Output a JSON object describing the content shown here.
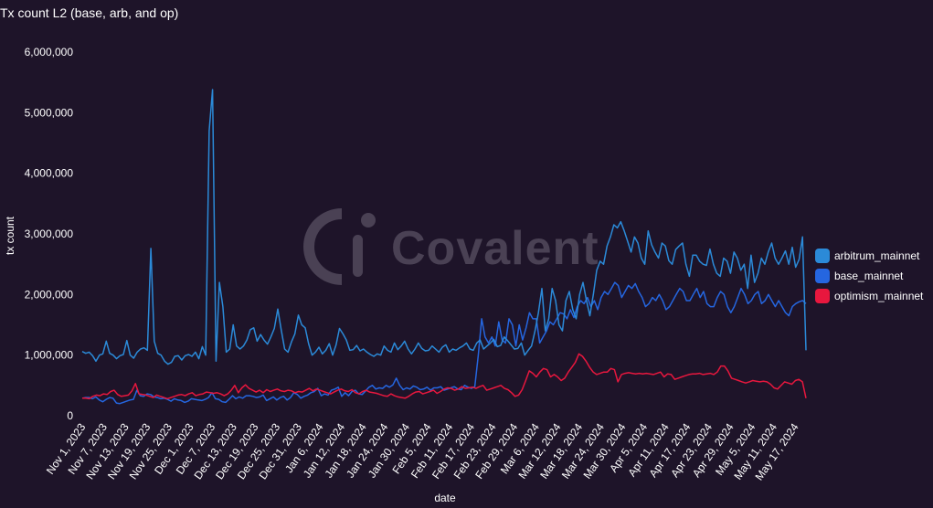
{
  "chart_data": {
    "type": "line",
    "title": "Tx count L2 (base, arb, and op)",
    "xlabel": "date",
    "ylabel": "tx count",
    "ylim": [
      0,
      6000000
    ],
    "yticks": [
      0,
      1000000,
      2000000,
      3000000,
      4000000,
      5000000,
      6000000
    ],
    "ytick_labels": [
      "0",
      "1,000,000",
      "2,000,000",
      "3,000,000",
      "4,000,000",
      "5,000,000",
      "6,000,000"
    ],
    "x_start": "2023-11-01",
    "x_end": "2024-05-20",
    "xtick_labels": [
      "Nov 1, 2023",
      "Nov 7, 2023",
      "Nov 13, 2023",
      "Nov 19, 2023",
      "Nov 25, 2023",
      "Dec 1, 2023",
      "Dec 7, 2023",
      "Dec 13, 2023",
      "Dec 19, 2023",
      "Dec 25, 2023",
      "Dec 31, 2023",
      "Jan 6, 2024",
      "Jan 12, 2024",
      "Jan 18, 2024",
      "Jan 24, 2024",
      "Jan 30, 2024",
      "Feb 5, 2024",
      "Feb 11, 2024",
      "Feb 17, 2024",
      "Feb 23, 2024",
      "Feb 29, 2024",
      "Mar 6, 2024",
      "Mar 12, 2024",
      "Mar 18, 2024",
      "Mar 24, 2024",
      "Mar 30, 2024",
      "Apr 5, 2024",
      "Apr 11, 2024",
      "Apr 17, 2024",
      "Apr 23, 2024",
      "Apr 29, 2024",
      "May 5, 2024",
      "May 11, 2024",
      "May 17, 2024"
    ],
    "grid": false,
    "legend_position": "right",
    "watermark": "Covalent",
    "series": [
      {
        "name": "arbitrum_mainnet",
        "color": "#2b8ad8",
        "values": [
          1060000,
          1030000,
          1050000,
          990000,
          900000,
          1000000,
          1020000,
          1230000,
          1030000,
          1000000,
          940000,
          990000,
          1010000,
          1240000,
          1000000,
          950000,
          1050000,
          1100000,
          1120000,
          1080000,
          2760000,
          1230000,
          1030000,
          1000000,
          900000,
          850000,
          880000,
          980000,
          990000,
          920000,
          990000,
          1010000,
          980000,
          1050000,
          940000,
          1140000,
          1000000,
          4700000,
          5380000,
          900000,
          2200000,
          1800000,
          1050000,
          1100000,
          1500000,
          1150000,
          1100000,
          1150000,
          1250000,
          1420000,
          1450000,
          1230000,
          1340000,
          1250000,
          1180000,
          1300000,
          1440000,
          1760000,
          1420000,
          1100000,
          1050000,
          1220000,
          1350000,
          1660000,
          1500000,
          1450000,
          1190000,
          1000000,
          1050000,
          1130000,
          1020000,
          1080000,
          1190000,
          1000000,
          1170000,
          1440000,
          1350000,
          1250000,
          1080000,
          1090000,
          1160000,
          1070000,
          1100000,
          1050000,
          1010000,
          980000,
          1020000,
          1000000,
          1150000,
          1080000,
          1050000,
          1200000,
          1090000,
          1150000,
          1230000,
          1100000,
          1020000,
          1100000,
          1200000,
          1110000,
          1070000,
          1080000,
          1150000,
          1100000,
          1050000,
          1130000,
          1170000,
          1050000,
          1100000,
          1080000,
          1120000,
          1150000,
          1200000,
          1100000,
          1080000,
          1200000,
          1250000,
          1100000,
          1150000,
          1200000,
          1260000,
          1140000,
          1160000,
          1300000,
          1240000,
          1170000,
          1100000,
          1110000,
          1200000,
          1000000,
          1080000,
          1150000,
          1400000,
          1700000,
          2100000,
          1400000,
          1600000,
          2100000,
          1900000,
          1500000,
          1400000,
          1900000,
          2050000,
          1750000,
          1600000,
          2000000,
          2200000,
          1900000,
          1650000,
          2000000,
          2400000,
          2550000,
          2500000,
          2800000,
          2950000,
          3150000,
          3100000,
          3200000,
          3050000,
          2880000,
          2700000,
          2950000,
          2850000,
          2600000,
          2500000,
          3050000,
          2820000,
          2700000,
          2600000,
          2850000,
          2800000,
          2560000,
          2500000,
          2740000,
          2800000,
          2850000,
          2500000,
          2300000,
          2650000,
          2650000,
          2550000,
          2500000,
          2480000,
          2750000,
          2500000,
          2350000,
          2300000,
          2600000,
          2550000,
          2350000,
          2700000,
          2600000,
          2400000,
          2500000,
          2100000,
          2650000,
          2200000,
          2350000,
          2600000,
          2500000,
          2700000,
          2850000,
          2600000,
          2500000,
          2600000,
          2720000,
          2500000,
          2780000,
          2450000,
          2580000,
          2950000,
          1080000
        ]
      },
      {
        "name": "base_mainnet",
        "color": "#2566e0",
        "values": [
          290000,
          300000,
          300000,
          280000,
          310000,
          260000,
          230000,
          270000,
          300000,
          290000,
          210000,
          200000,
          220000,
          240000,
          260000,
          270000,
          420000,
          330000,
          320000,
          360000,
          350000,
          310000,
          300000,
          280000,
          290000,
          270000,
          240000,
          280000,
          260000,
          250000,
          220000,
          240000,
          280000,
          270000,
          260000,
          250000,
          270000,
          300000,
          380000,
          280000,
          270000,
          230000,
          220000,
          270000,
          330000,
          280000,
          310000,
          290000,
          330000,
          330000,
          320000,
          300000,
          310000,
          340000,
          250000,
          280000,
          310000,
          260000,
          300000,
          320000,
          260000,
          300000,
          380000,
          350000,
          290000,
          320000,
          340000,
          380000,
          400000,
          450000,
          330000,
          360000,
          340000,
          420000,
          440000,
          470000,
          320000,
          380000,
          330000,
          400000,
          420000,
          360000,
          350000,
          410000,
          470000,
          500000,
          440000,
          460000,
          450000,
          500000,
          470000,
          510000,
          620000,
          500000,
          430000,
          460000,
          440000,
          490000,
          470000,
          430000,
          440000,
          470000,
          420000,
          460000,
          460000,
          480000,
          420000,
          440000,
          460000,
          480000,
          440000,
          430000,
          500000,
          470000,
          450000,
          480000,
          1000000,
          1600000,
          1300000,
          1200000,
          1300000,
          1150000,
          1550000,
          1250000,
          1200000,
          1600000,
          1500000,
          1150000,
          1500000,
          1250000,
          1450000,
          1700000,
          1600000,
          1600000,
          1200000,
          1300000,
          1400000,
          1550000,
          1500000,
          1600000,
          1700000,
          1680000,
          1600000,
          1750000,
          1620000,
          1800000,
          1900000,
          1850000,
          1950000,
          1800000,
          1900000,
          1750000,
          1950000,
          2050000,
          2000000,
          2100000,
          2200000,
          2150000,
          1950000,
          2050000,
          2150000,
          2100000,
          2180000,
          2050000,
          1950000,
          1800000,
          1850000,
          1950000,
          1900000,
          2000000,
          1900000,
          1750000,
          1800000,
          1900000,
          2000000,
          2100000,
          2050000,
          1900000,
          1900000,
          2000000,
          2100000,
          1950000,
          2050000,
          1850000,
          1800000,
          1800000,
          1950000,
          2050000,
          2000000,
          1800000,
          1700000,
          1800000,
          1950000,
          2100000,
          2000000,
          1850000,
          1900000,
          2000000,
          2050000,
          1850000,
          1900000,
          2000000,
          1900000,
          1800000,
          1900000,
          1800000,
          1700000,
          1650000,
          1800000,
          1850000,
          1880000,
          1900000,
          1850000
        ]
      },
      {
        "name": "optimism_mainnet",
        "color": "#e8173e",
        "values": [
          290000,
          290000,
          280000,
          320000,
          340000,
          330000,
          360000,
          350000,
          400000,
          420000,
          350000,
          320000,
          330000,
          340000,
          410000,
          530000,
          360000,
          350000,
          340000,
          320000,
          300000,
          340000,
          320000,
          300000,
          280000,
          300000,
          320000,
          340000,
          350000,
          330000,
          360000,
          380000,
          330000,
          350000,
          360000,
          390000,
          380000,
          370000,
          380000,
          360000,
          330000,
          360000,
          420000,
          500000,
          380000,
          460000,
          510000,
          450000,
          420000,
          390000,
          420000,
          380000,
          430000,
          400000,
          420000,
          440000,
          410000,
          400000,
          420000,
          410000,
          380000,
          400000,
          390000,
          420000,
          450000,
          410000,
          440000,
          420000,
          400000,
          380000,
          360000,
          390000,
          420000,
          440000,
          410000,
          400000,
          430000,
          380000,
          360000,
          400000,
          420000,
          390000,
          380000,
          370000,
          350000,
          330000,
          320000,
          360000,
          330000,
          310000,
          300000,
          290000,
          320000,
          360000,
          390000,
          400000,
          360000,
          380000,
          400000,
          420000,
          370000,
          400000,
          440000,
          460000,
          450000,
          420000,
          440000,
          480000,
          450000,
          460000,
          470000,
          450000,
          480000,
          500000,
          420000,
          440000,
          460000,
          480000,
          500000,
          450000,
          430000,
          380000,
          320000,
          340000,
          430000,
          580000,
          740000,
          700000,
          640000,
          720000,
          780000,
          760000,
          640000,
          680000,
          640000,
          580000,
          620000,
          720000,
          800000,
          880000,
          1020000,
          980000,
          900000,
          800000,
          720000,
          680000,
          700000,
          720000,
          720000,
          780000,
          760000,
          560000,
          680000,
          700000,
          710000,
          700000,
          690000,
          700000,
          690000,
          700000,
          690000,
          680000,
          700000,
          720000,
          640000,
          690000,
          680000,
          600000,
          620000,
          640000,
          660000,
          680000,
          690000,
          690000,
          700000,
          680000,
          690000,
          700000,
          680000,
          720000,
          820000,
          820000,
          740000,
          620000,
          600000,
          580000,
          560000,
          540000,
          560000,
          580000,
          570000,
          560000,
          570000,
          560000,
          520000,
          460000,
          440000,
          500000,
          560000,
          540000,
          520000,
          580000,
          600000,
          560000,
          290000
        ]
      }
    ]
  }
}
